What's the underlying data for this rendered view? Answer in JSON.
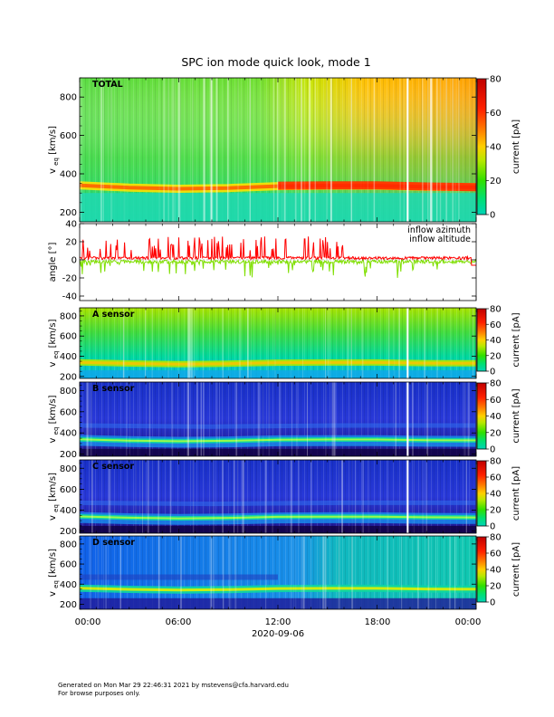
{
  "figure": {
    "title": "SPC ion mode quick look, mode 1",
    "date_label": "2020-09-06",
    "time_ticks": [
      "00:00",
      "06:00",
      "12:00",
      "18:00",
      "00:00"
    ],
    "footer_line1": "Generated on Mon Mar 29 22:46:31 2021 by mstevens@cfa.harvard.edu",
    "footer_line2": "For browse purposes only."
  },
  "chart_data": [
    {
      "type": "heatmap",
      "panel": "total",
      "label": "TOTAL",
      "ylabel_main": "v",
      "ylabel_sub": "eq",
      "ylabel_unit": "[km/s]",
      "ylim": [
        150,
        900
      ],
      "yticks": [
        200,
        400,
        600,
        800
      ],
      "x_range_hours": [
        0,
        24
      ],
      "colorbar": {
        "label": "current [pA]",
        "range": [
          0,
          80
        ],
        "ticks": [
          0,
          20,
          40,
          60,
          80
        ]
      },
      "features": {
        "beam_speed_km_s": 330,
        "upper_level_color": "green-to-orange"
      }
    },
    {
      "type": "line",
      "panel": "angle",
      "ylabel": "angle [°]",
      "ylim": [
        -45,
        40
      ],
      "yticks": [
        -40,
        -20,
        0,
        20,
        40
      ],
      "x_range_hours": [
        0,
        24
      ],
      "series": [
        {
          "name": "inflow azimuth",
          "color": "#ff0000",
          "typical_range_deg": [
            -5,
            25
          ]
        },
        {
          "name": "inflow altitude",
          "color": "#7fdf00",
          "typical_range_deg": [
            -20,
            5
          ]
        }
      ]
    },
    {
      "type": "heatmap",
      "panel": "a",
      "label": "A sensor",
      "ylabel_main": "v",
      "ylabel_sub": "eq",
      "ylabel_unit": "[km/s]",
      "ylim": [
        180,
        880
      ],
      "yticks": [
        200,
        400,
        600,
        800
      ],
      "colorbar": {
        "label": "current [pA]",
        "range": [
          0,
          80
        ],
        "ticks": [
          0,
          20,
          40,
          60,
          80
        ]
      }
    },
    {
      "type": "heatmap",
      "panel": "b",
      "label": "B sensor",
      "ylabel_main": "v",
      "ylabel_sub": "eq",
      "ylabel_unit": "[km/s]",
      "ylim": [
        180,
        880
      ],
      "yticks": [
        200,
        400,
        600,
        800
      ],
      "colorbar": {
        "label": "current [pA]",
        "range": [
          0,
          80
        ],
        "ticks": [
          0,
          20,
          40,
          60,
          80
        ]
      }
    },
    {
      "type": "heatmap",
      "panel": "c",
      "label": "C sensor",
      "ylabel_main": "v",
      "ylabel_sub": "eq",
      "ylabel_unit": "[km/s]",
      "ylim": [
        180,
        880
      ],
      "yticks": [
        200,
        400,
        600,
        800
      ],
      "colorbar": {
        "label": "current [pA]",
        "range": [
          0,
          80
        ],
        "ticks": [
          0,
          20,
          40,
          60,
          80
        ]
      }
    },
    {
      "type": "heatmap",
      "panel": "d",
      "label": "D sensor",
      "ylabel_main": "v",
      "ylabel_sub": "eq",
      "ylabel_unit": "[km/s]",
      "ylim": [
        150,
        880
      ],
      "yticks": [
        200,
        400,
        600,
        800
      ],
      "colorbar": {
        "label": "current [pA]",
        "range": [
          0,
          80
        ],
        "ticks": [
          0,
          20,
          40,
          60,
          80
        ]
      }
    }
  ]
}
